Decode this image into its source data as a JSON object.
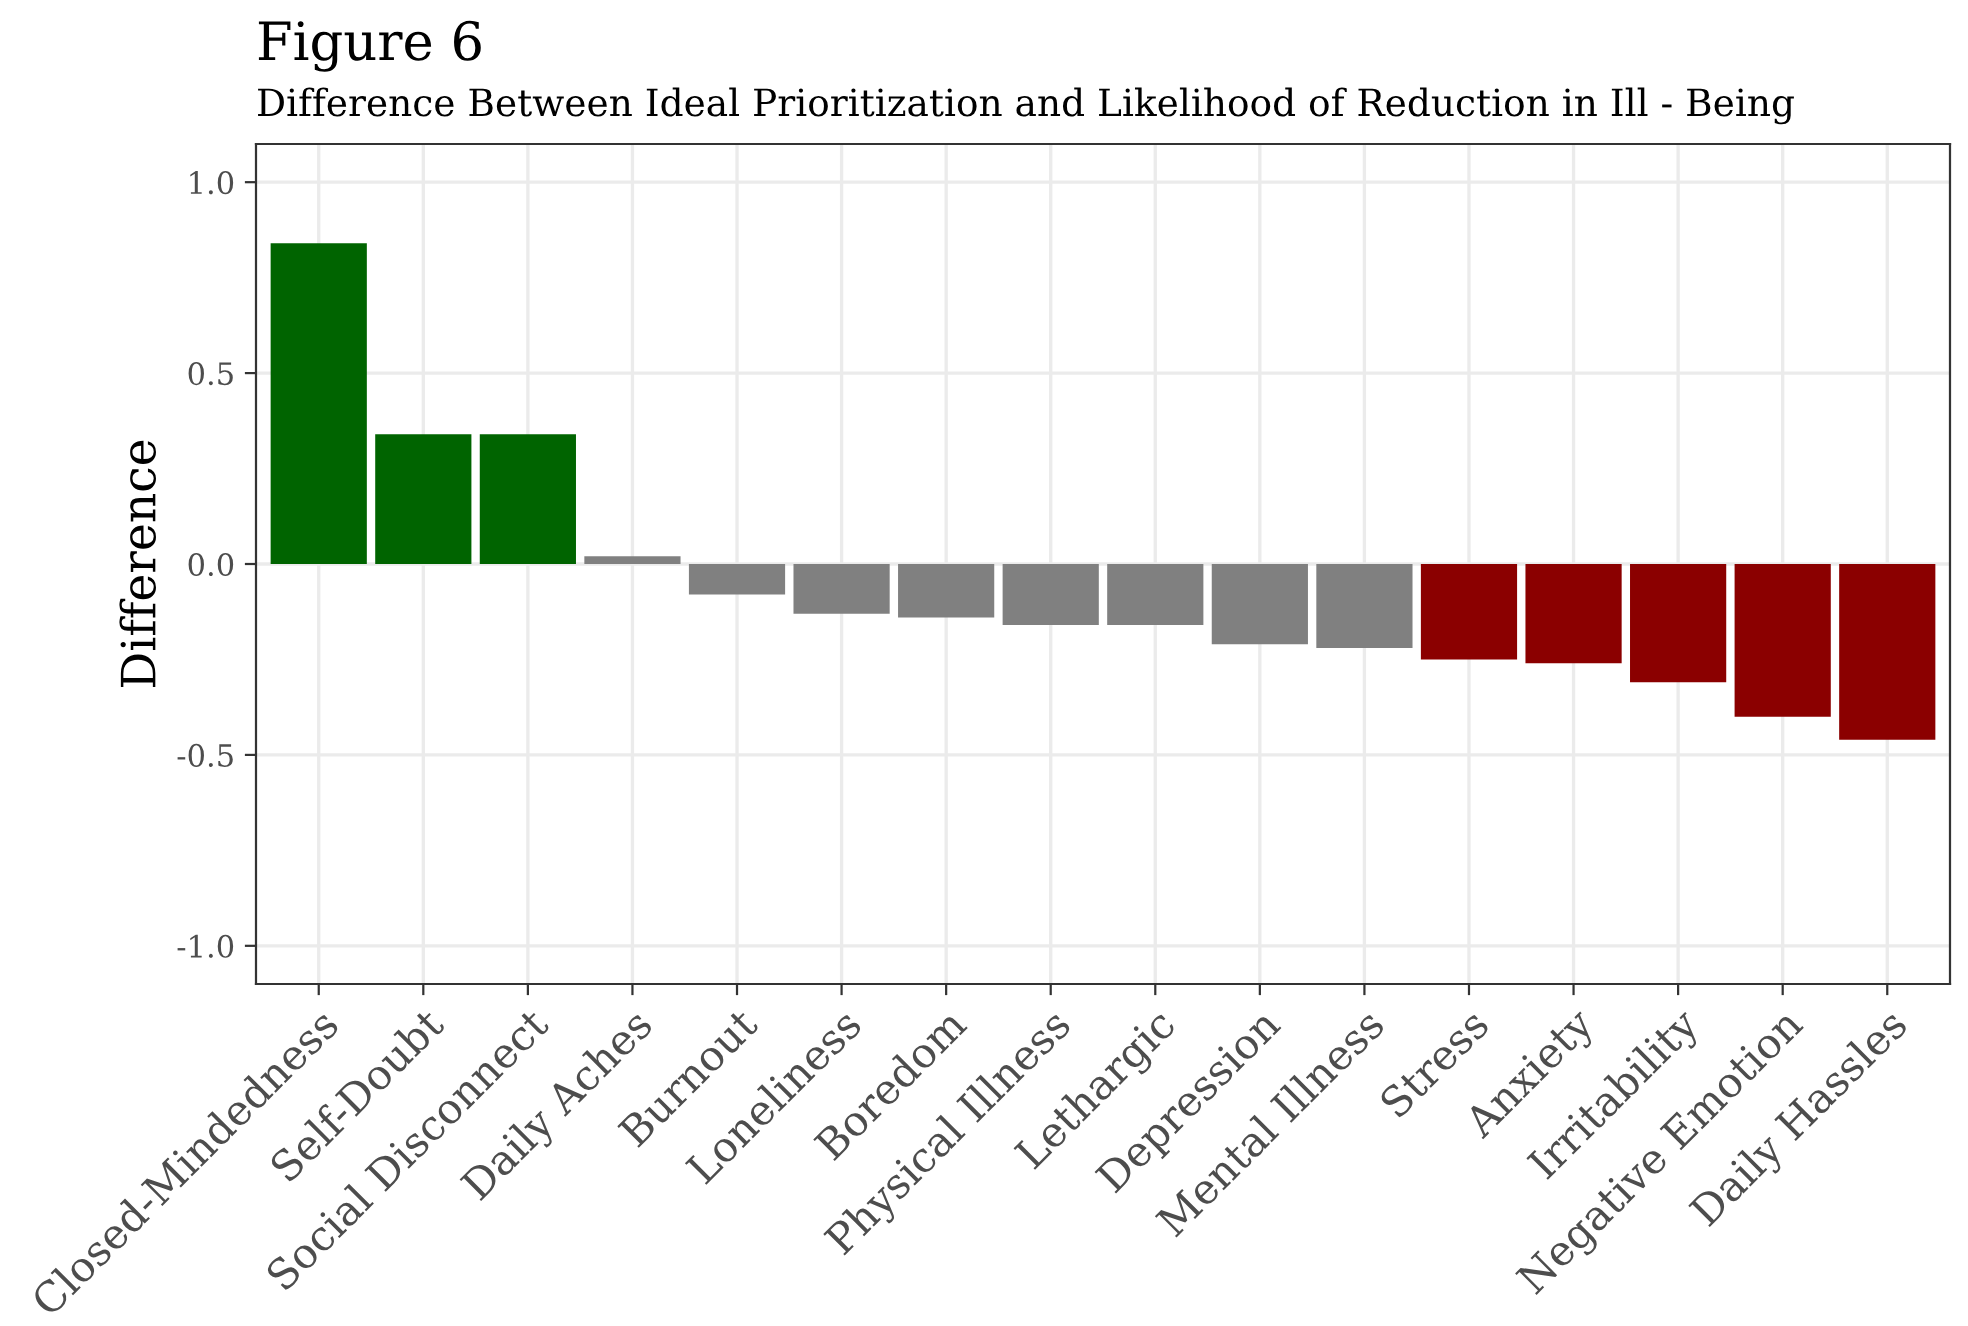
{
  "chart_data": {
    "type": "bar",
    "title": "Figure 6",
    "subtitle": "Difference Between Ideal Prioritization and Likelihood of Reduction in Ill - Being",
    "ylabel": "Difference",
    "categories": [
      "Closed-Mindedness",
      "Self-Doubt",
      "Social Disconnect",
      "Daily Aches",
      "Burnout",
      "Loneliness",
      "Boredom",
      "Physical Illness",
      "Lethargic",
      "Depression",
      "Mental Illness",
      "Stress",
      "Anxiety",
      "Irritability",
      "Negative Emotion",
      "Daily Hassles"
    ],
    "values": [
      0.84,
      0.34,
      0.34,
      0.02,
      -0.08,
      -0.13,
      -0.14,
      -0.16,
      -0.16,
      -0.21,
      -0.22,
      -0.25,
      -0.26,
      -0.31,
      -0.4,
      -0.46
    ],
    "colors": [
      "#006400",
      "#006400",
      "#006400",
      "#808080",
      "#808080",
      "#808080",
      "#808080",
      "#808080",
      "#808080",
      "#808080",
      "#808080",
      "#8b0000",
      "#8b0000",
      "#8b0000",
      "#8b0000",
      "#8b0000"
    ],
    "ylim": [
      -1.1,
      1.1
    ],
    "yticks": [
      {
        "value": -1.0,
        "label": "-1.0"
      },
      {
        "value": -0.5,
        "label": "-0.5"
      },
      {
        "value": 0.0,
        "label": "0.0"
      },
      {
        "value": 0.5,
        "label": "0.5"
      },
      {
        "value": 1.0,
        "label": "1.0"
      }
    ],
    "grid": true,
    "legend": false
  }
}
